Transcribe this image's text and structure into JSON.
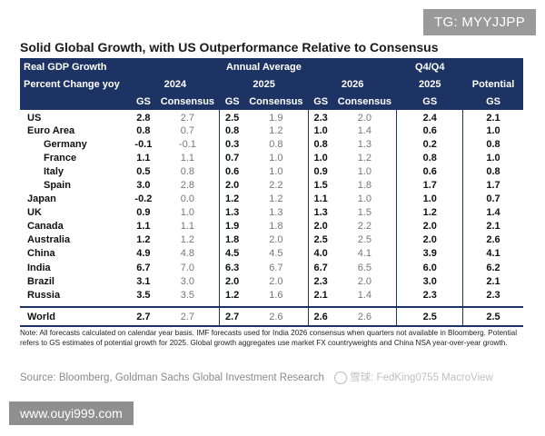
{
  "watermark_tag": "TG: MYYJJPP",
  "title": "Solid Global Growth, with US Outperformance Relative to Consensus",
  "header": {
    "real_gdp": "Real GDP Growth",
    "pct_change": "Percent Change yoy",
    "annual_average": "Annual Average",
    "q4q4": "Q4/Q4",
    "y2024": "2024",
    "y2025": "2025",
    "y2026": "2026",
    "y2025q": "2025",
    "potential": "Potential",
    "gs": "GS",
    "consensus": "Consensus"
  },
  "rows": [
    {
      "name": "US",
      "sub": false,
      "gs24": "2.8",
      "c24": "2.7",
      "gs25": "2.5",
      "c25": "1.9",
      "gs26": "2.3",
      "c26": "2.0",
      "q4": "2.4",
      "pot": "2.1"
    },
    {
      "name": "Euro Area",
      "sub": false,
      "gs24": "0.8",
      "c24": "0.7",
      "gs25": "0.8",
      "c25": "1.2",
      "gs26": "1.0",
      "c26": "1.4",
      "q4": "0.6",
      "pot": "1.0"
    },
    {
      "name": "Germany",
      "sub": true,
      "gs24": "-0.1",
      "c24": "-0.1",
      "gs25": "0.3",
      "c25": "0.8",
      "gs26": "0.8",
      "c26": "1.3",
      "q4": "0.2",
      "pot": "0.8"
    },
    {
      "name": "France",
      "sub": true,
      "gs24": "1.1",
      "c24": "1.1",
      "gs25": "0.7",
      "c25": "1.0",
      "gs26": "1.0",
      "c26": "1.2",
      "q4": "0.8",
      "pot": "1.0"
    },
    {
      "name": "Italy",
      "sub": true,
      "gs24": "0.5",
      "c24": "0.8",
      "gs25": "0.6",
      "c25": "1.0",
      "gs26": "0.9",
      "c26": "1.0",
      "q4": "0.6",
      "pot": "0.8"
    },
    {
      "name": "Spain",
      "sub": true,
      "gs24": "3.0",
      "c24": "2.8",
      "gs25": "2.0",
      "c25": "2.2",
      "gs26": "1.5",
      "c26": "1.8",
      "q4": "1.7",
      "pot": "1.7"
    },
    {
      "name": "Japan",
      "sub": false,
      "gs24": "-0.2",
      "c24": "0.0",
      "gs25": "1.2",
      "c25": "1.2",
      "gs26": "1.1",
      "c26": "1.0",
      "q4": "1.0",
      "pot": "0.7"
    },
    {
      "name": "UK",
      "sub": false,
      "gs24": "0.9",
      "c24": "1.0",
      "gs25": "1.3",
      "c25": "1.3",
      "gs26": "1.3",
      "c26": "1.5",
      "q4": "1.2",
      "pot": "1.4"
    },
    {
      "name": "Canada",
      "sub": false,
      "gs24": "1.1",
      "c24": "1.1",
      "gs25": "1.9",
      "c25": "1.8",
      "gs26": "2.0",
      "c26": "2.2",
      "q4": "2.0",
      "pot": "2.1"
    },
    {
      "name": "Australia",
      "sub": false,
      "gs24": "1.2",
      "c24": "1.2",
      "gs25": "1.8",
      "c25": "2.0",
      "gs26": "2.5",
      "c26": "2.5",
      "q4": "2.0",
      "pot": "2.6"
    },
    {
      "name": "China",
      "sub": false,
      "gs24": "4.9",
      "c24": "4.8",
      "gs25": "4.5",
      "c25": "4.5",
      "gs26": "4.0",
      "c26": "4.1",
      "q4": "3.9",
      "pot": "4.1"
    },
    {
      "name": "India",
      "sub": false,
      "gs24": "6.7",
      "c24": "7.0",
      "gs25": "6.3",
      "c25": "6.7",
      "gs26": "6.7",
      "c26": "6.5",
      "q4": "6.0",
      "pot": "6.2"
    },
    {
      "name": "Brazil",
      "sub": false,
      "gs24": "3.1",
      "c24": "3.0",
      "gs25": "2.0",
      "c25": "2.0",
      "gs26": "2.3",
      "c26": "2.0",
      "q4": "3.0",
      "pot": "2.1"
    },
    {
      "name": "Russia",
      "sub": false,
      "gs24": "3.5",
      "c24": "3.5",
      "gs25": "1.2",
      "c25": "1.6",
      "gs26": "2.1",
      "c26": "1.4",
      "q4": "2.3",
      "pot": "2.3"
    }
  ],
  "world": {
    "name": "World",
    "gs24": "2.7",
    "c24": "2.7",
    "gs25": "2.7",
    "c25": "2.6",
    "gs26": "2.6",
    "c26": "2.6",
    "q4": "2.5",
    "pot": "2.5"
  },
  "note": "Note: All forecasts calculated on calendar year basis. IMF forecasts used for India 2026 consensus when quarters not available in Bloomberg. Potential refers to GS estimates of potential growth for 2025. Global growth aggregates use market FX countryweights and China NSA year-over-year growth.",
  "source": "Source: Bloomberg, Goldman Sachs Global Investment Research",
  "source_watermark": "雪球: FedKing0755   MacroView",
  "site_tag": "www.ouyi999.com",
  "colors": {
    "header_bg": "#1d3363"
  }
}
